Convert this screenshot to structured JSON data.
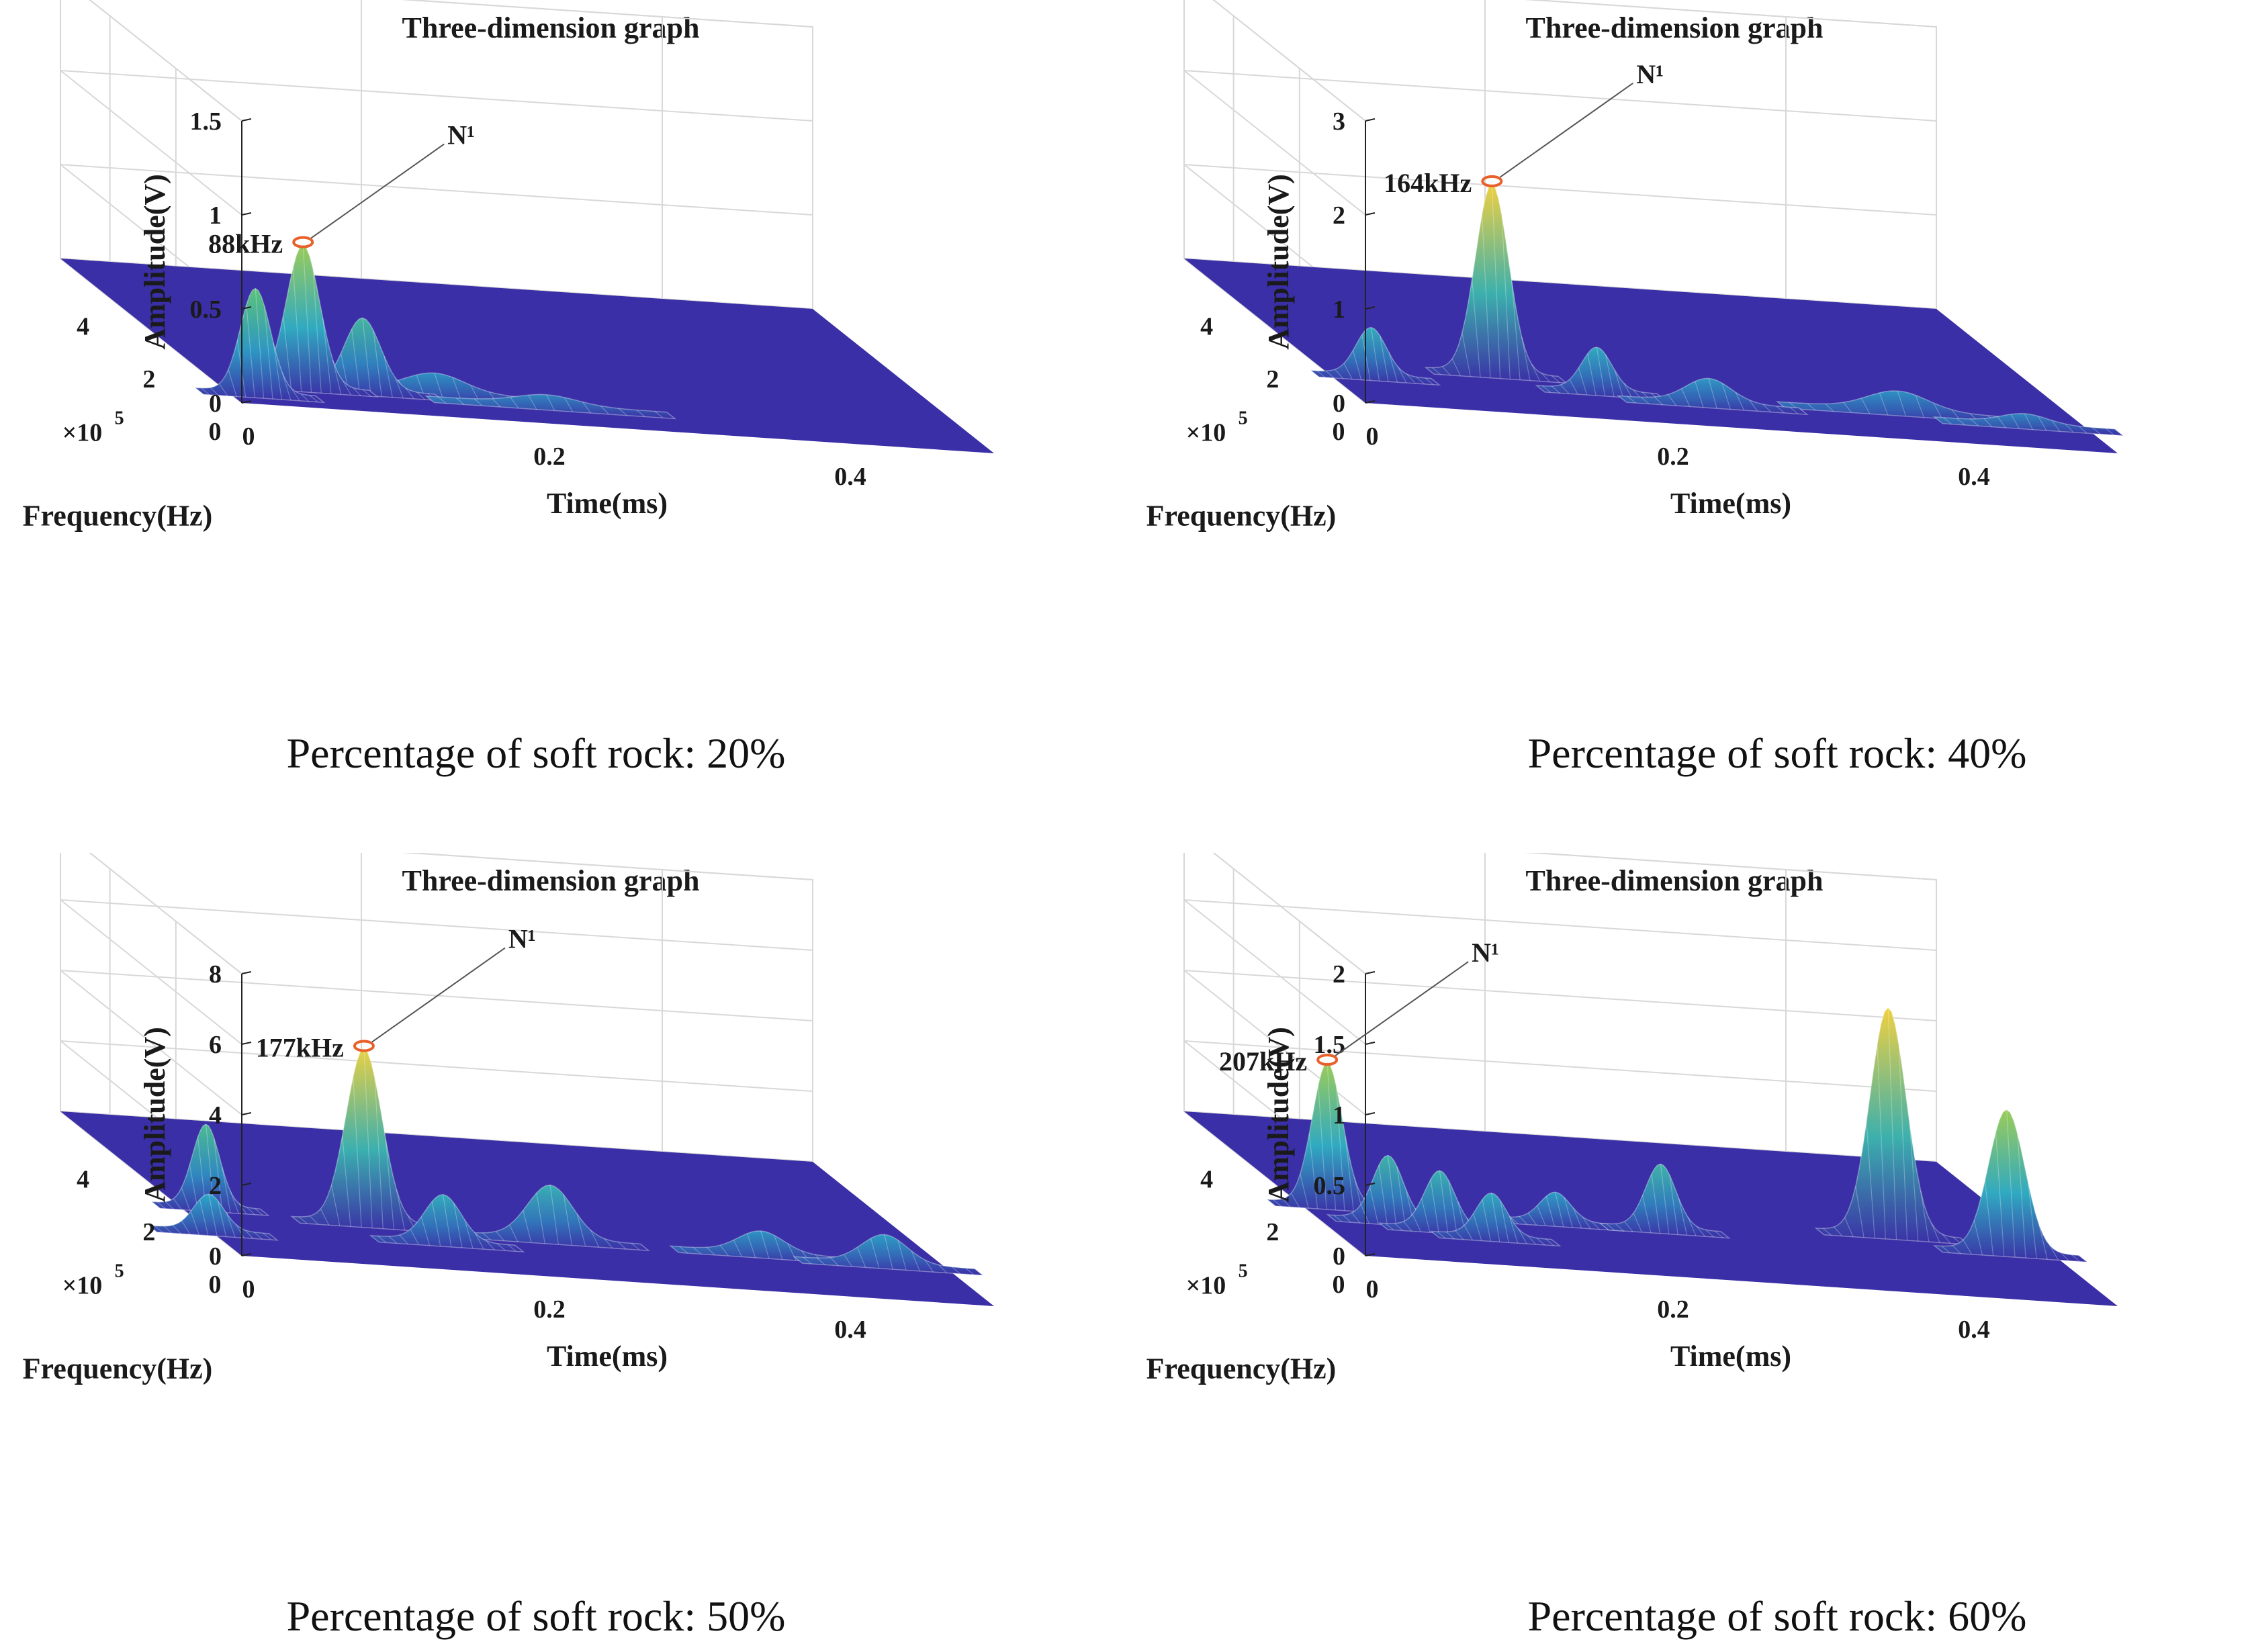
{
  "colors": {
    "surface_base": "#3a2fa6",
    "peak_mid": "#2ca6c8",
    "peak_high": "#63c96a",
    "peak_top": "#f0d040",
    "marker": "#e8602a",
    "grid": "#d8d8d8",
    "axis": "#222222"
  },
  "chart_data": [
    {
      "type": "surface3d",
      "title": "Three-dimension graph",
      "xlabel": "Time(ms)",
      "ylabel": "Frequency(Hz)",
      "zlabel": "Amplitude(V)",
      "y_exponent": "×10",
      "y_exponent_power": "5",
      "x_ticks": [
        "0",
        "0.2",
        "0.4"
      ],
      "y_ticks": [
        "0",
        "2",
        "4"
      ],
      "z_ticks": [
        "0",
        "0.5",
        "1",
        "1.5"
      ],
      "xlim": [
        0,
        0.5
      ],
      "ylim": [
        0,
        5.5
      ],
      "zlim": [
        0,
        1.5
      ],
      "peaks": [
        {
          "t": 0.02,
          "f": 0.5,
          "amp": 0.55,
          "w": 0.01
        },
        {
          "t": 0.06,
          "f": 0.88,
          "amp": 0.75,
          "w": 0.011
        },
        {
          "t": 0.1,
          "f": 0.9,
          "amp": 0.38,
          "w": 0.012
        },
        {
          "t": 0.15,
          "f": 1.0,
          "amp": 0.1,
          "w": 0.02
        },
        {
          "t": 0.22,
          "f": 0.8,
          "amp": 0.05,
          "w": 0.02
        }
      ],
      "annotation": {
        "label": "N¹",
        "freq": "88kHz",
        "t": 0.06,
        "f": 0.88,
        "amp": 0.75
      },
      "caption": "Percentage of soft rock: 20%"
    },
    {
      "type": "surface3d",
      "title": "Three-dimension graph",
      "xlabel": "Time(ms)",
      "ylabel": "Frequency(Hz)",
      "zlabel": "Amplitude(V)",
      "y_exponent": "×10",
      "y_exponent_power": "5",
      "x_ticks": [
        "0",
        "0.2",
        "0.4"
      ],
      "y_ticks": [
        "0",
        "2",
        "4"
      ],
      "z_ticks": [
        "0",
        "1",
        "2",
        "3"
      ],
      "xlim": [
        0,
        0.5
      ],
      "ylim": [
        0,
        5.5
      ],
      "zlim": [
        0,
        3
      ],
      "peaks": [
        {
          "t": 0.03,
          "f": 1.2,
          "amp": 0.5,
          "w": 0.01
        },
        {
          "t": 0.12,
          "f": 1.64,
          "amp": 2.0,
          "w": 0.011
        },
        {
          "t": 0.18,
          "f": 1.2,
          "amp": 0.45,
          "w": 0.01
        },
        {
          "t": 0.25,
          "f": 1.0,
          "amp": 0.25,
          "w": 0.015
        },
        {
          "t": 0.38,
          "f": 1.2,
          "amp": 0.2,
          "w": 0.02
        },
        {
          "t": 0.46,
          "f": 1.0,
          "amp": 0.1,
          "w": 0.015
        }
      ],
      "annotation": {
        "label": "N¹",
        "freq": "164kHz",
        "t": 0.12,
        "f": 1.64,
        "amp": 2.0
      },
      "caption": "Percentage of soft rock: 40%"
    },
    {
      "type": "surface3d",
      "title": "Three-dimension graph",
      "xlabel": "Time(ms)",
      "ylabel": "Frequency(Hz)",
      "zlabel": "Amplitude(V)",
      "y_exponent": "×10",
      "y_exponent_power": "5",
      "x_ticks": [
        "0",
        "0.2",
        "0.4"
      ],
      "y_ticks": [
        "0",
        "2",
        "4"
      ],
      "z_ticks": [
        "0",
        "2",
        "4",
        "6",
        "8"
      ],
      "xlim": [
        0,
        0.5
      ],
      "ylim": [
        0,
        5.5
      ],
      "zlim": [
        0,
        8
      ],
      "peaks": [
        {
          "t": 0.0,
          "f": 1.0,
          "amp": 1.0,
          "w": 0.01
        },
        {
          "t": 0.02,
          "f": 2.0,
          "amp": 2.3,
          "w": 0.009
        },
        {
          "t": 0.12,
          "f": 1.77,
          "amp": 4.9,
          "w": 0.012
        },
        {
          "t": 0.16,
          "f": 1.2,
          "amp": 1.3,
          "w": 0.012
        },
        {
          "t": 0.24,
          "f": 1.6,
          "amp": 1.5,
          "w": 0.015
        },
        {
          "t": 0.38,
          "f": 1.6,
          "amp": 0.6,
          "w": 0.015
        },
        {
          "t": 0.46,
          "f": 1.5,
          "amp": 0.8,
          "w": 0.015
        }
      ],
      "annotation": {
        "label": "N¹",
        "freq": "177kHz",
        "t": 0.12,
        "f": 1.77,
        "amp": 4.9
      },
      "caption": "Percentage of soft rock: 50%"
    },
    {
      "type": "surface3d",
      "title": "Three-dimension graph",
      "xlabel": "Time(ms)",
      "ylabel": "Frequency(Hz)",
      "zlabel": "Amplitude(V)",
      "y_exponent": "×10",
      "y_exponent_power": "5",
      "x_ticks": [
        "0",
        "0.2",
        "0.4"
      ],
      "y_ticks": [
        "0",
        "2",
        "4"
      ],
      "z_ticks": [
        "0",
        "0.5",
        "1",
        "1.5",
        "2"
      ],
      "xlim": [
        0,
        0.5
      ],
      "ylim": [
        0,
        5.5
      ],
      "zlim": [
        0,
        2
      ],
      "peaks": [
        {
          "t": 0.02,
          "f": 2.07,
          "amp": 1.0,
          "w": 0.01
        },
        {
          "t": 0.05,
          "f": 1.6,
          "amp": 0.45,
          "w": 0.01
        },
        {
          "t": 0.08,
          "f": 1.4,
          "amp": 0.4,
          "w": 0.01
        },
        {
          "t": 0.11,
          "f": 1.2,
          "amp": 0.3,
          "w": 0.01
        },
        {
          "t": 0.17,
          "f": 2.0,
          "amp": 0.2,
          "w": 0.01
        },
        {
          "t": 0.24,
          "f": 2.0,
          "amp": 0.45,
          "w": 0.01
        },
        {
          "t": 0.4,
          "f": 2.4,
          "amp": 1.6,
          "w": 0.012
        },
        {
          "t": 0.47,
          "f": 2.0,
          "amp": 1.0,
          "w": 0.012
        }
      ],
      "annotation": {
        "label": "N¹",
        "freq": "207kHz",
        "t": 0.02,
        "f": 2.07,
        "amp": 1.0
      },
      "caption": "Percentage of soft rock: 60%"
    }
  ]
}
